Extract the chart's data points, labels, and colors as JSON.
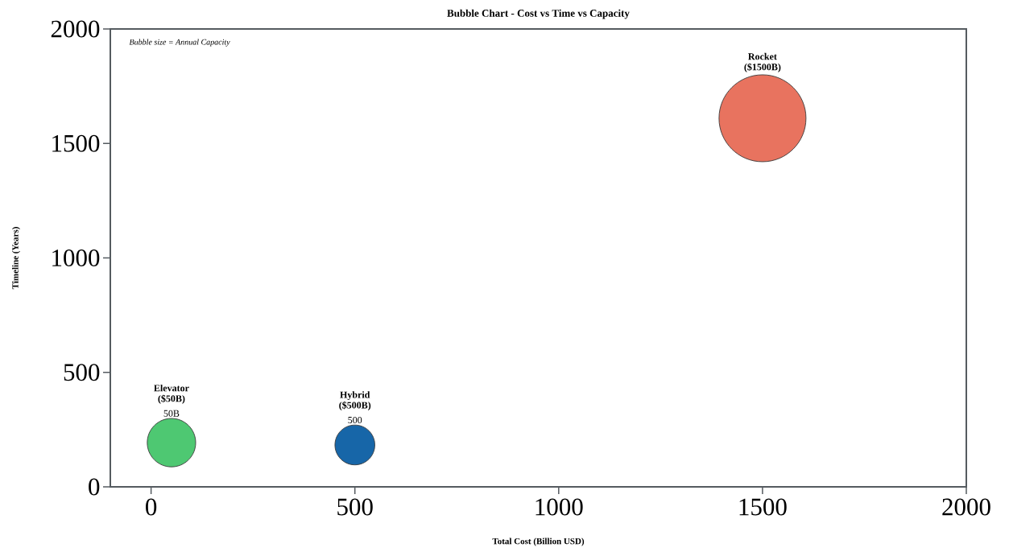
{
  "chart_data": {
    "type": "bubble",
    "title": "Bubble Chart - Cost vs Time vs Capacity",
    "xlabel": "Total Cost (Billion USD)",
    "ylabel": "Timeline (Years)",
    "xlim": [
      -100,
      2000
    ],
    "ylim": [
      0,
      2000
    ],
    "xticks": [
      0,
      500,
      1000,
      1500,
      2000
    ],
    "yticks": [
      0,
      500,
      1000,
      1500,
      2000
    ],
    "series": [
      {
        "name": "Elevator ($50B)",
        "color": "#4ec872",
        "x": [
          50
        ],
        "values": [
          193
        ],
        "sizes": [
          0.31
        ]
      },
      {
        "name": "Hybrid ($500B)",
        "color": "#1766a8",
        "x": [
          500
        ],
        "values": [
          183
        ],
        "sizes": [
          0.21
        ]
      },
      {
        "name": "Rocket ($1500B)",
        "color": "#e8735f",
        "x": [
          1500
        ],
        "values": [
          1610
        ],
        "sizes": [
          1
        ]
      }
    ],
    "annotations": [
      "*Bubble size = Annual Capacity*",
      {
        "text": "50B",
        "x": 50,
        "y": 193
      },
      {
        "text": "500",
        "x": 500,
        "y": 183
      }
    ]
  }
}
